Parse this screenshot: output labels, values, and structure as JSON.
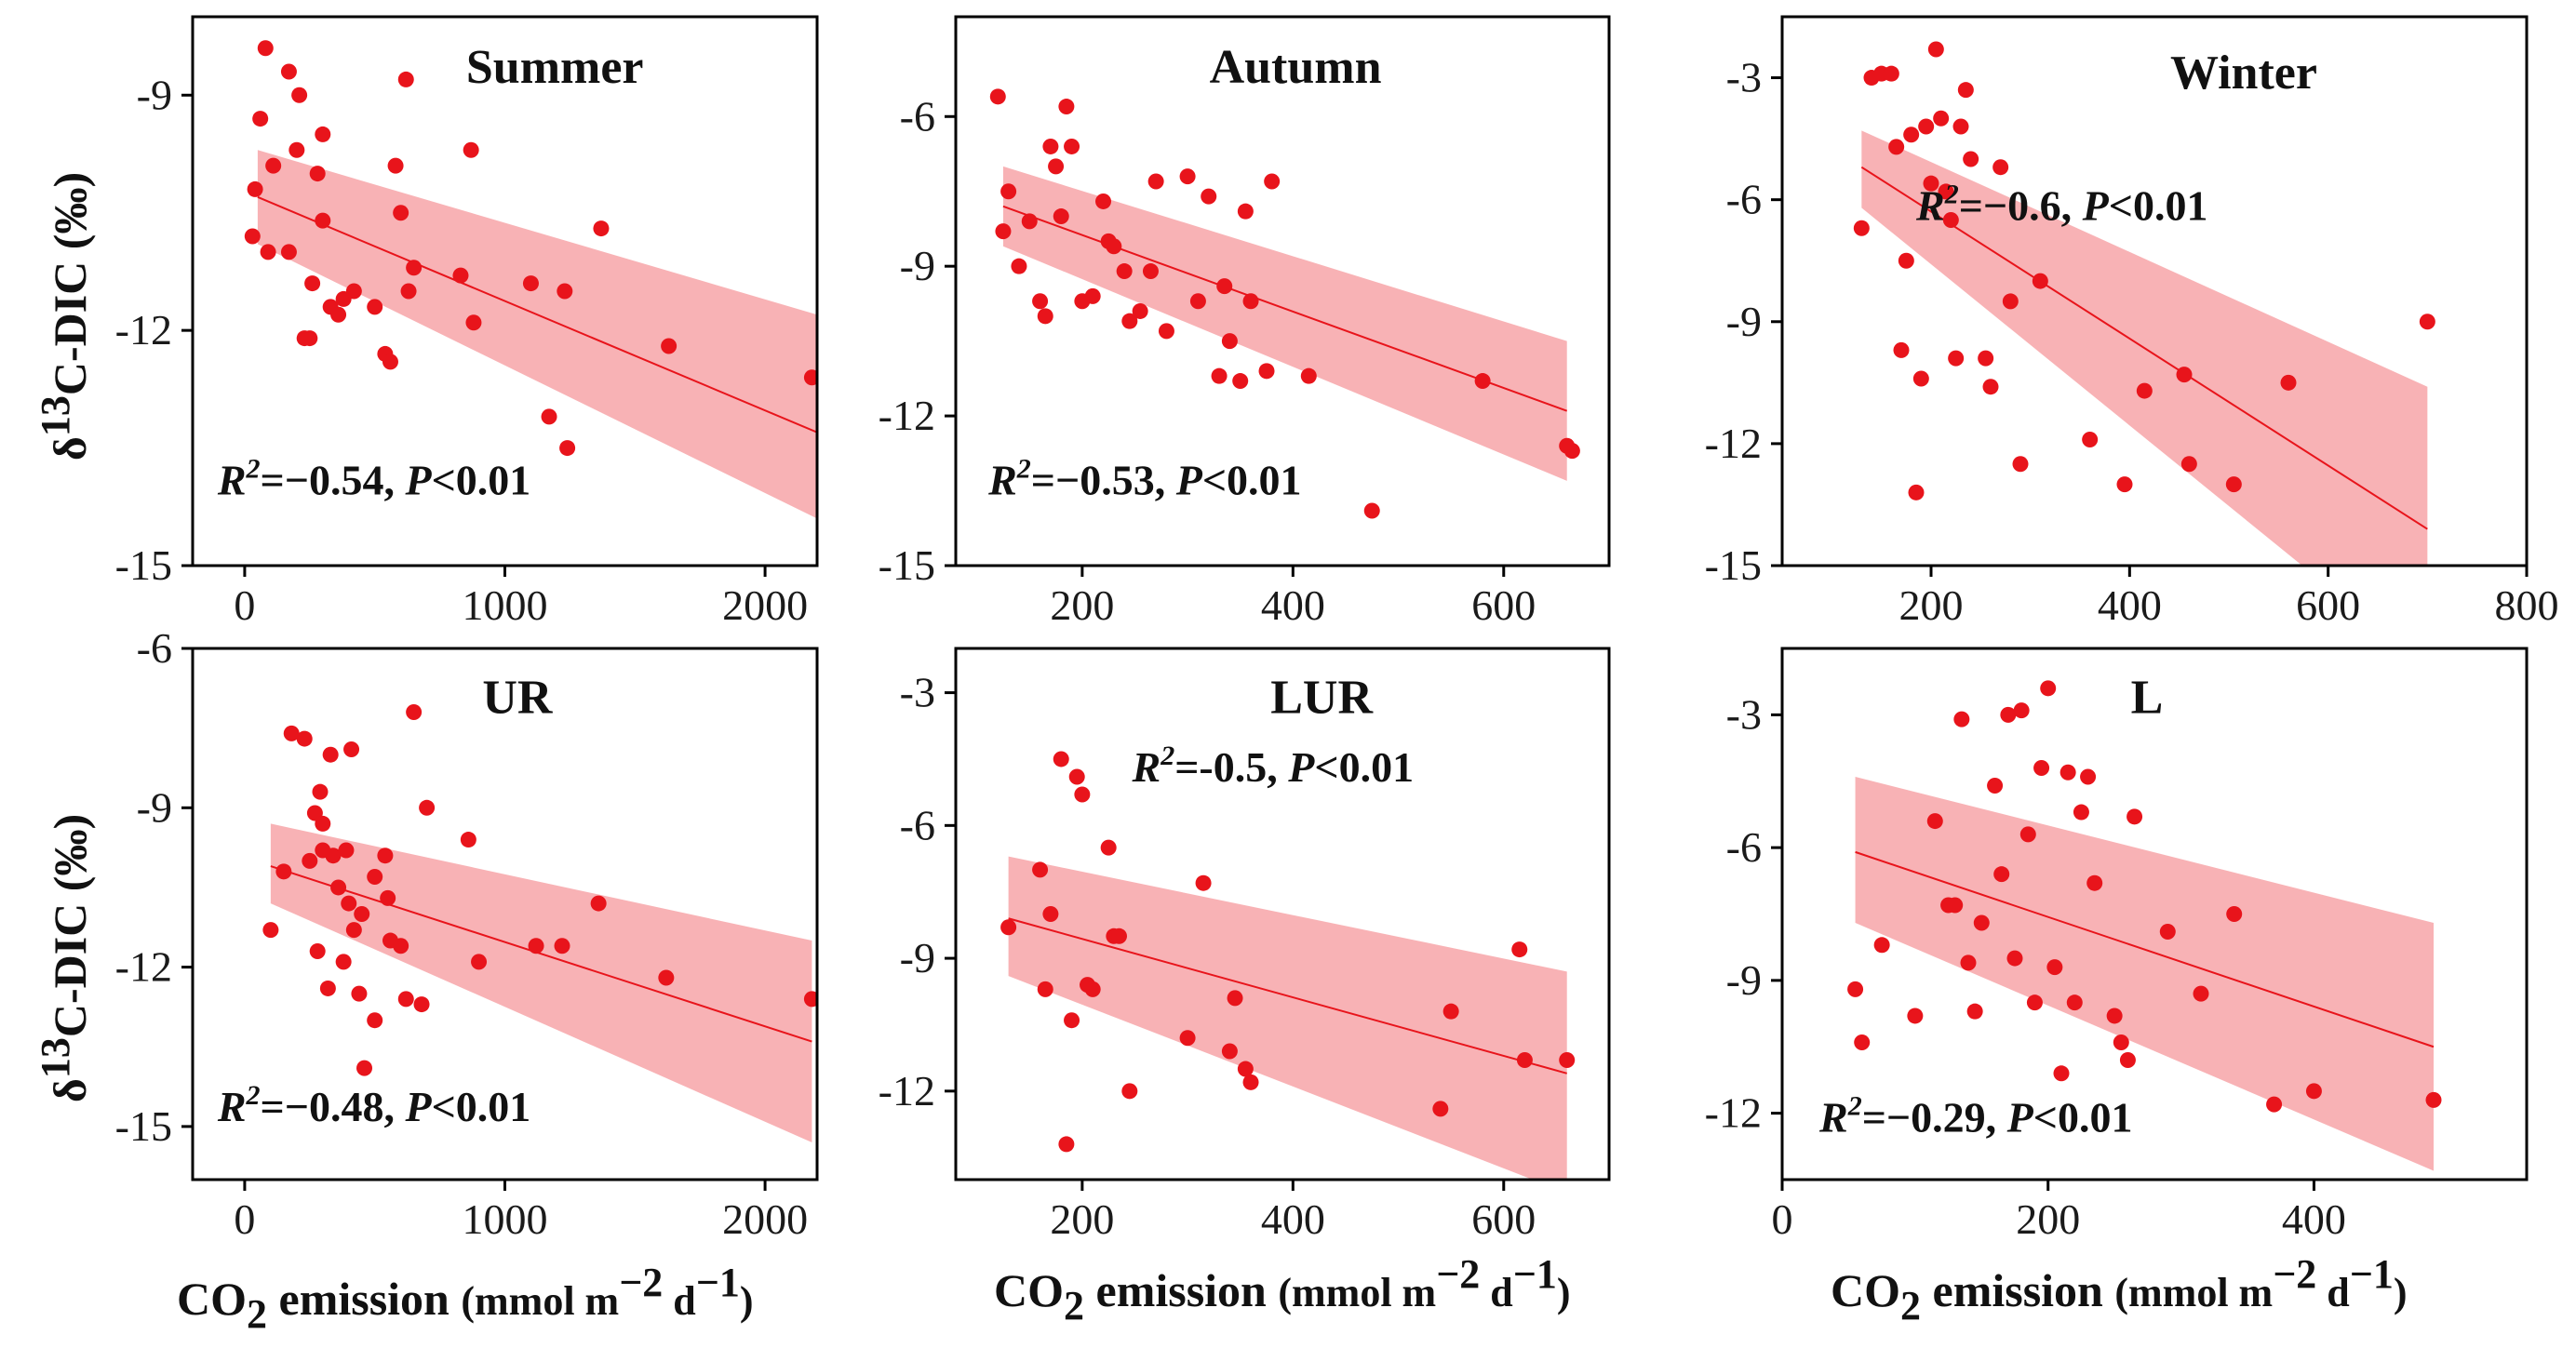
{
  "figure": {
    "ylabel_parts": {
      "delta": "δ",
      "sup": "13",
      "rest": "C-DIC (‰)"
    },
    "xlabel_parts": {
      "co": "CO",
      "sub": "2",
      "main": " emission ",
      "units_a": "(mmol m",
      "exp1": "−2",
      "units_b": " d",
      "exp2": "−1",
      "units_c": ")"
    }
  },
  "colors": {
    "points": "#e8141b",
    "band": "#f7a5a8",
    "line": "#e8141b",
    "frame": "#000000"
  },
  "chart_data": [
    {
      "type": "scatter",
      "title": "Summer",
      "stat": {
        "r": "R",
        "r2": "2",
        "val": "=−0.54, ",
        "p": "P",
        "pval": "<0.01"
      },
      "xlim": [
        -200,
        2200
      ],
      "ylim": [
        -15,
        -8
      ],
      "xticks": [
        0,
        1000,
        2000
      ],
      "yticks": [
        -9,
        -12,
        -15
      ],
      "fit": {
        "x": [
          50,
          2200
        ],
        "y": [
          -10.3,
          -13.3
        ],
        "lower": [
          -10.9,
          -14.4
        ],
        "upper": [
          -9.7,
          -11.8
        ]
      },
      "x": [
        80,
        170,
        210,
        60,
        110,
        40,
        30,
        200,
        90,
        170,
        260,
        300,
        330,
        360,
        380,
        420,
        500,
        620,
        650,
        580,
        600,
        630,
        540,
        560,
        300,
        280,
        250,
        230,
        870,
        830,
        880,
        1100,
        1230,
        1370,
        1170,
        1240,
        1630,
        2180
      ],
      "y": [
        -8.4,
        -8.7,
        -9.0,
        -9.3,
        -9.9,
        -10.2,
        -10.8,
        -9.7,
        -11.0,
        -11.0,
        -11.4,
        -10.6,
        -11.7,
        -11.8,
        -11.6,
        -11.5,
        -11.7,
        -8.8,
        -11.2,
        -9.9,
        -10.5,
        -11.5,
        -12.3,
        -12.4,
        -9.5,
        -10.0,
        -12.1,
        -12.1,
        -9.7,
        -11.3,
        -11.9,
        -11.4,
        -11.5,
        -10.7,
        -13.1,
        -13.5,
        -12.2,
        -12.6
      ]
    },
    {
      "type": "scatter",
      "title": "Autumn",
      "stat": {
        "r": "R",
        "r2": "2",
        "val": "=−0.53, ",
        "p": "P",
        "pval": "<0.01"
      },
      "xlim": [
        80,
        700
      ],
      "ylim": [
        -15,
        -4
      ],
      "xticks": [
        200,
        400,
        600
      ],
      "yticks": [
        -6,
        -9,
        -12,
        -15
      ],
      "fit": {
        "x": [
          125,
          660
        ],
        "y": [
          -7.8,
          -11.9
        ],
        "lower": [
          -8.6,
          -13.3
        ],
        "upper": [
          -7.0,
          -10.5
        ]
      },
      "x": [
        120,
        125,
        130,
        140,
        150,
        160,
        165,
        170,
        175,
        180,
        185,
        190,
        200,
        210,
        220,
        225,
        230,
        240,
        245,
        255,
        265,
        270,
        280,
        300,
        310,
        320,
        330,
        335,
        340,
        350,
        355,
        360,
        375,
        380,
        415,
        475,
        580,
        660,
        665
      ],
      "y": [
        -5.6,
        -8.3,
        -7.5,
        -9.0,
        -8.1,
        -9.7,
        -10.0,
        -6.6,
        -7.0,
        -8.0,
        -5.8,
        -6.6,
        -9.7,
        -9.6,
        -7.7,
        -8.5,
        -8.6,
        -9.1,
        -10.1,
        -9.9,
        -9.1,
        -7.3,
        -10.3,
        -7.2,
        -9.7,
        -7.6,
        -11.2,
        -9.4,
        -10.5,
        -11.3,
        -7.9,
        -9.7,
        -11.1,
        -7.3,
        -11.2,
        -13.9,
        -11.3,
        -12.6,
        -12.7
      ],
      "x_note": "approximate"
    },
    {
      "type": "scatter",
      "title": "Winter",
      "stat": {
        "r": "R",
        "r2": "2",
        "val": "=−0.6, ",
        "p": "P",
        "pval": "<0.01"
      },
      "xlim": [
        50,
        800
      ],
      "ylim": [
        -15,
        -1.5
      ],
      "xticks": [
        200,
        400,
        600,
        800
      ],
      "yticks": [
        -3,
        -6,
        -9,
        -12,
        -15
      ],
      "fit": {
        "x": [
          130,
          700
        ],
        "y": [
          -5.2,
          -14.1
        ],
        "lower": [
          -6.2,
          -17.5
        ],
        "upper": [
          -4.3,
          -10.6
        ]
      },
      "x": [
        130,
        140,
        150,
        160,
        165,
        170,
        175,
        180,
        185,
        190,
        195,
        200,
        205,
        210,
        215,
        220,
        225,
        230,
        235,
        240,
        255,
        260,
        270,
        280,
        290,
        310,
        360,
        395,
        415,
        455,
        460,
        505,
        560,
        700
      ],
      "y": [
        -6.7,
        -3.0,
        -2.9,
        -2.9,
        -4.7,
        -9.7,
        -7.5,
        -4.4,
        -13.2,
        -10.4,
        -4.2,
        -5.6,
        -2.3,
        -4.0,
        -5.8,
        -6.5,
        -9.9,
        -4.2,
        -3.3,
        -5.0,
        -9.9,
        -10.6,
        -5.2,
        -8.5,
        -12.5,
        -8.0,
        -11.9,
        -13.0,
        -10.7,
        -10.3,
        -12.5,
        -13.0,
        -10.5,
        -9.0
      ]
    },
    {
      "type": "scatter",
      "title": "UR",
      "stat": {
        "r": "R",
        "r2": "2",
        "val": "=−0.48, ",
        "p": "P",
        "pval": "<0.01"
      },
      "xlim": [
        -200,
        2200
      ],
      "ylim": [
        -16,
        -6
      ],
      "xticks": [
        0,
        1000,
        2000
      ],
      "yticks": [
        -6,
        -9,
        -12,
        -15
      ],
      "fit": {
        "x": [
          100,
          2180
        ],
        "y": [
          -10.1,
          -13.4
        ],
        "lower": [
          -10.8,
          -15.3
        ],
        "upper": [
          -9.3,
          -11.5
        ]
      },
      "x": [
        100,
        150,
        180,
        230,
        250,
        270,
        290,
        300,
        320,
        340,
        360,
        380,
        400,
        420,
        440,
        460,
        500,
        540,
        560,
        600,
        620,
        650,
        680,
        700,
        280,
        300,
        330,
        390,
        410,
        450,
        500,
        550,
        860,
        900,
        1120,
        1220,
        1360,
        1620,
        2180
      ],
      "y": [
        -11.3,
        -10.2,
        -7.6,
        -7.7,
        -10.0,
        -9.1,
        -8.7,
        -9.8,
        -12.4,
        -9.9,
        -10.5,
        -11.9,
        -10.8,
        -11.3,
        -12.5,
        -13.9,
        -13.0,
        -9.9,
        -11.5,
        -11.6,
        -12.6,
        -7.2,
        -12.7,
        -9.0,
        -11.7,
        -9.3,
        -8.0,
        -9.8,
        -7.9,
        -11.0,
        -10.3,
        -10.7,
        -9.6,
        -11.9,
        -11.6,
        -11.6,
        -10.8,
        -12.2,
        -12.6
      ]
    },
    {
      "type": "scatter",
      "title": "LUR",
      "stat": {
        "r": "R",
        "r2": "2",
        "val": "=-0.5, ",
        "p": "P",
        "pval": "<0.01"
      },
      "xlim": [
        80,
        700
      ],
      "ylim": [
        -14,
        -2
      ],
      "xticks": [
        200,
        400,
        600
      ],
      "yticks": [
        -3,
        -6,
        -9,
        -12
      ],
      "fit": {
        "x": [
          130,
          660
        ],
        "y": [
          -8.1,
          -11.6
        ],
        "lower": [
          -9.4,
          -14.3
        ],
        "upper": [
          -6.7,
          -9.3
        ]
      },
      "x": [
        130,
        160,
        165,
        170,
        180,
        185,
        190,
        195,
        200,
        205,
        210,
        225,
        230,
        235,
        245,
        300,
        315,
        340,
        345,
        355,
        360,
        540,
        550,
        615,
        620,
        660
      ],
      "y": [
        -8.3,
        -7.0,
        -9.7,
        -8.0,
        -4.5,
        -13.2,
        -10.4,
        -4.9,
        -5.3,
        -9.6,
        -9.7,
        -6.5,
        -8.5,
        -8.5,
        -12.0,
        -10.8,
        -7.3,
        -11.1,
        -9.9,
        -11.5,
        -11.8,
        -12.4,
        -10.2,
        -8.8,
        -11.3,
        -11.3
      ],
      "x_note": "approximate"
    },
    {
      "type": "scatter",
      "title": "L",
      "stat": {
        "r": "R",
        "r2": "2",
        "val": "=−0.29, ",
        "p": "P",
        "pval": "<0.01"
      },
      "xlim": [
        0,
        560
      ],
      "ylim": [
        -13.5,
        -1.5
      ],
      "xticks": [
        0,
        200,
        400
      ],
      "yticks": [
        -3,
        -6,
        -9,
        -12
      ],
      "fit": {
        "x": [
          55,
          490
        ],
        "y": [
          -6.1,
          -10.5
        ],
        "lower": [
          -7.7,
          -13.3
        ],
        "upper": [
          -4.4,
          -7.7
        ]
      },
      "x": [
        55,
        60,
        75,
        100,
        115,
        125,
        130,
        135,
        140,
        145,
        150,
        160,
        165,
        170,
        175,
        180,
        185,
        190,
        195,
        200,
        205,
        210,
        215,
        220,
        225,
        230,
        235,
        250,
        255,
        260,
        265,
        290,
        315,
        340,
        370,
        400,
        490
      ],
      "y": [
        -9.2,
        -10.4,
        -8.2,
        -9.8,
        -5.4,
        -7.3,
        -7.3,
        -3.1,
        -8.6,
        -9.7,
        -7.7,
        -4.6,
        -6.6,
        -3.0,
        -8.5,
        -2.9,
        -5.7,
        -9.5,
        -4.2,
        -2.4,
        -8.7,
        -11.1,
        -4.3,
        -9.5,
        -5.2,
        -4.4,
        -6.8,
        -9.8,
        -10.4,
        -10.8,
        -5.3,
        -7.9,
        -9.3,
        -7.5,
        -11.8,
        -11.5,
        -11.7
      ]
    }
  ]
}
